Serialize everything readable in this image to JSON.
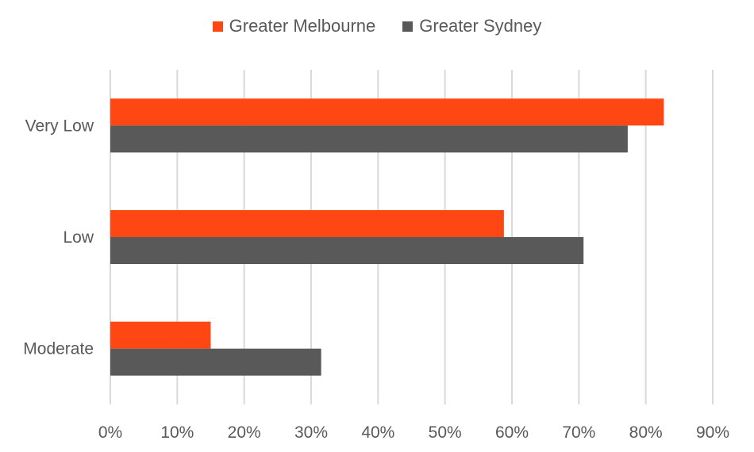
{
  "chart_data": {
    "type": "bar",
    "orientation": "horizontal",
    "categories": [
      "Very Low",
      "Low",
      "Moderate"
    ],
    "series": [
      {
        "name": "Greater Melbourne",
        "color": "#FF4713",
        "values": [
          82.7,
          58.8,
          15.0
        ]
      },
      {
        "name": "Greater Sydney",
        "color": "#595959",
        "values": [
          77.3,
          70.7,
          31.5
        ]
      }
    ],
    "xlim": [
      0,
      90
    ],
    "xticks": [
      0,
      10,
      20,
      30,
      40,
      50,
      60,
      70,
      80,
      90
    ],
    "tick_format": "%",
    "grid": true,
    "legend_position": "top"
  }
}
